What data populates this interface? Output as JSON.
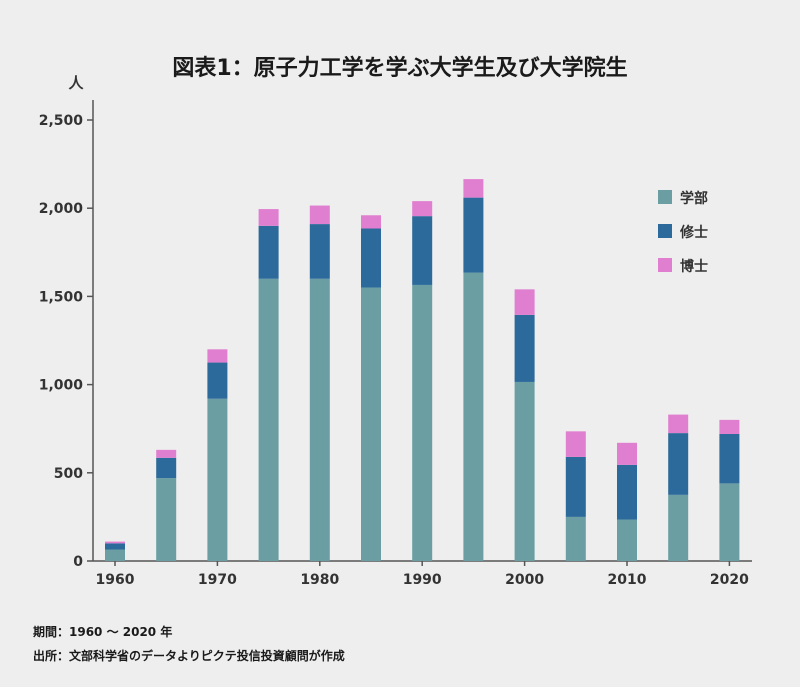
{
  "chart_data": {
    "type": "bar",
    "stacked": true,
    "title": "図表1：原子力工学を学ぶ大学生及び大学院生",
    "ylabel": "人",
    "xlabel": "",
    "ylim": [
      0,
      2500
    ],
    "yticks": [
      0,
      500,
      1000,
      1500,
      2000,
      2500
    ],
    "ytick_labels": [
      "0",
      "500",
      "1,000",
      "1,500",
      "2,000",
      "2,500"
    ],
    "xtick_labels": [
      "1960",
      "1970",
      "1980",
      "1990",
      "2000",
      "2010",
      "2020"
    ],
    "categories": [
      "1960",
      "1965",
      "1970",
      "1975",
      "1980",
      "1985",
      "1990",
      "1995",
      "2000",
      "2005",
      "2010",
      "2015",
      "2020"
    ],
    "series": [
      {
        "name": "学部",
        "color": "#6a9ea2",
        "values": [
          65,
          470,
          920,
          1600,
          1600,
          1550,
          1565,
          1635,
          1015,
          250,
          235,
          375,
          440
        ]
      },
      {
        "name": "修士",
        "color": "#2b6a9a",
        "values": [
          35,
          115,
          205,
          300,
          310,
          335,
          390,
          425,
          380,
          340,
          310,
          350,
          280
        ]
      },
      {
        "name": "博士",
        "color": "#e07fcf",
        "values": [
          10,
          45,
          75,
          95,
          105,
          75,
          85,
          105,
          145,
          145,
          125,
          105,
          80
        ]
      }
    ],
    "legend": "right",
    "grid": false
  },
  "notes": {
    "period": "期間：1960 ～ 2020 年",
    "source": "出所：文部科学省のデータよりピクテ投信投資顧問が作成"
  }
}
